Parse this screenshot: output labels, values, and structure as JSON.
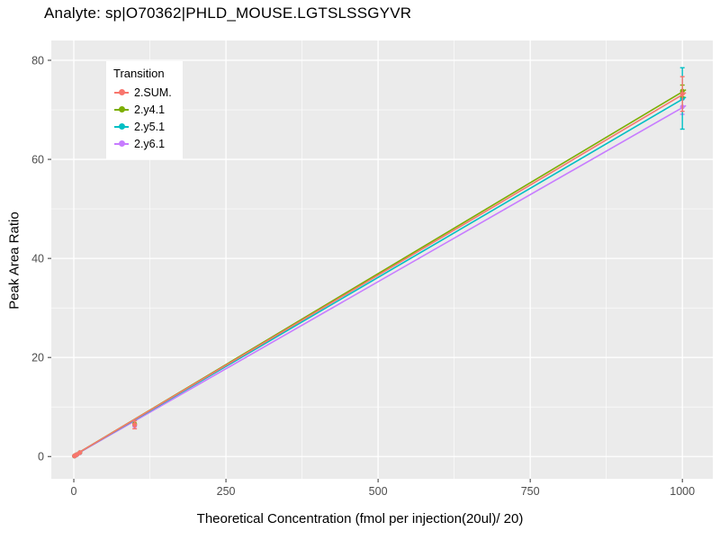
{
  "title": "Analyte: sp|O70362|PHLD_MOUSE.LGTSLSSGYVR",
  "chart_data": {
    "type": "scatter-line",
    "title": "Analyte: sp|O70362|PHLD_MOUSE.LGTSLSSGYVR",
    "xlabel": "Theoretical Concentration (fmol per injection(20ul)/ 20)",
    "ylabel": "Peak Area Ratio",
    "xlim": [
      -37,
      1050
    ],
    "ylim": [
      -4.5,
      84
    ],
    "xticks": [
      0,
      250,
      500,
      750,
      1000
    ],
    "yticks": [
      0,
      20,
      40,
      60,
      80
    ],
    "grid": "on",
    "panel_bg": "#EBEBEB",
    "grid_color": "#FFFFFF",
    "tick_label_color": "#4D4D4D",
    "legend": {
      "title": "Transition",
      "position": "top-left-inside",
      "entries": [
        "2.SUM.",
        "2.y4.1",
        "2.y5.1",
        "2.y6.1"
      ]
    },
    "series": [
      {
        "name": "2.SUM.",
        "color": "#F8766D",
        "line": {
          "x1": 0,
          "y1": 0.2,
          "x2": 1005,
          "y2": 73.4
        },
        "points": [
          {
            "x": 1,
            "y": 0.1
          },
          {
            "x": 2,
            "y": 0.2
          },
          {
            "x": 5,
            "y": 0.4
          },
          {
            "x": 10,
            "y": 0.8
          },
          {
            "x": 100,
            "y": 6.4,
            "err": 0.8
          },
          {
            "x": 1000,
            "y": 73.2,
            "err": 3.5
          }
        ]
      },
      {
        "name": "2.y4.1",
        "color": "#7CAE00",
        "line": {
          "x1": 0,
          "y1": 0.2,
          "x2": 1005,
          "y2": 74.0
        },
        "points": [
          {
            "x": 1,
            "y": 0.1
          },
          {
            "x": 2,
            "y": 0.2
          },
          {
            "x": 5,
            "y": 0.4
          },
          {
            "x": 10,
            "y": 0.8
          },
          {
            "x": 100,
            "y": 6.6
          },
          {
            "x": 1000,
            "y": 73.8,
            "err": 1.2
          }
        ]
      },
      {
        "name": "2.y5.1",
        "color": "#00BFC4",
        "line": {
          "x1": 0,
          "y1": 0.2,
          "x2": 1005,
          "y2": 72.5
        },
        "points": [
          {
            "x": 1,
            "y": 0.1
          },
          {
            "x": 2,
            "y": 0.2
          },
          {
            "x": 5,
            "y": 0.4
          },
          {
            "x": 10,
            "y": 0.8
          },
          {
            "x": 100,
            "y": 6.4
          },
          {
            "x": 1000,
            "y": 72.3,
            "err": 6.2
          }
        ]
      },
      {
        "name": "2.y6.1",
        "color": "#C77CFF",
        "line": {
          "x1": 0,
          "y1": 0.15,
          "x2": 1005,
          "y2": 70.8
        },
        "points": [
          {
            "x": 1,
            "y": 0.1
          },
          {
            "x": 2,
            "y": 0.15
          },
          {
            "x": 5,
            "y": 0.35
          },
          {
            "x": 10,
            "y": 0.75
          },
          {
            "x": 100,
            "y": 6.2
          },
          {
            "x": 1000,
            "y": 70.6,
            "err": 1.5
          }
        ]
      }
    ]
  }
}
